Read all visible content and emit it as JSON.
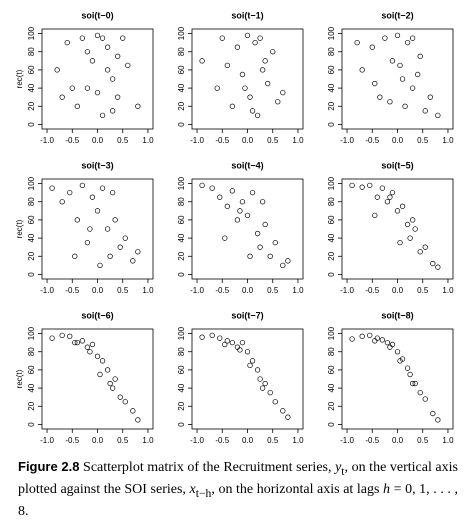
{
  "chart_data": [
    {
      "type": "scatter",
      "title": "soi(t−0)",
      "ylabel": "rec(t)",
      "x": [
        -0.8,
        -0.6,
        -0.4,
        -0.3,
        -0.2,
        -0.1,
        0,
        0.1,
        0.2,
        0.3,
        0.4,
        0.5,
        0.6,
        0.8,
        -0.5,
        0.2,
        0.1,
        -0.2,
        0.3,
        0.0,
        0.4,
        -0.7
      ],
      "y": [
        60,
        90,
        20,
        95,
        40,
        70,
        98,
        10,
        85,
        50,
        30,
        95,
        65,
        20,
        40,
        60,
        95,
        80,
        15,
        35,
        75,
        30
      ],
      "xlim": [
        -1.1,
        1.1
      ],
      "ylim": [
        -5,
        105
      ],
      "xticks": [
        {
          "value": -1,
          "label": "-1.0"
        },
        -0.5,
        {
          "value": 0,
          "label": "0.0"
        },
        0.5,
        {
          "value": 1,
          "label": "1.0"
        }
      ],
      "yticks": [
        0,
        20,
        40,
        60,
        80,
        100
      ]
    },
    {
      "type": "scatter",
      "title": "soi(t−1)",
      "x": [
        -0.9,
        -0.6,
        -0.5,
        -0.3,
        -0.2,
        -0.1,
        0,
        0.05,
        0.15,
        0.2,
        0.3,
        0.4,
        0.5,
        0.6,
        0.7,
        -0.4,
        0.1,
        0.25,
        -0.05,
        0.35
      ],
      "y": [
        70,
        40,
        95,
        20,
        85,
        55,
        98,
        30,
        90,
        10,
        60,
        45,
        80,
        25,
        35,
        65,
        15,
        95,
        40,
        70
      ],
      "xlim": [
        -1.1,
        1.1
      ],
      "ylim": [
        -5,
        105
      ],
      "xticks": [
        {
          "value": -1,
          "label": "-1.0"
        },
        -0.5,
        {
          "value": 0,
          "label": "0.0"
        },
        0.5,
        {
          "value": 1,
          "label": "1.0"
        }
      ],
      "yticks": [
        0,
        20,
        40,
        60,
        80,
        100
      ]
    },
    {
      "type": "scatter",
      "title": "soi(t−2)",
      "x": [
        -0.8,
        -0.7,
        -0.5,
        -0.35,
        -0.25,
        -0.1,
        0,
        0.1,
        0.15,
        0.2,
        0.3,
        0.45,
        0.55,
        0.65,
        0.8,
        -0.45,
        0.05,
        0.3,
        -0.15,
        0.4
      ],
      "y": [
        90,
        60,
        85,
        30,
        95,
        70,
        98,
        50,
        20,
        90,
        40,
        75,
        15,
        30,
        10,
        45,
        65,
        95,
        25,
        55
      ],
      "xlim": [
        -1.1,
        1.1
      ],
      "ylim": [
        -5,
        105
      ],
      "xticks": [
        {
          "value": -1,
          "label": "-1.0"
        },
        -0.5,
        {
          "value": 0,
          "label": "0.0"
        },
        0.5,
        {
          "value": 1,
          "label": "1.0"
        }
      ],
      "yticks": [
        0,
        20,
        40,
        60,
        80,
        100
      ]
    },
    {
      "type": "scatter",
      "title": "soi(t−3)",
      "ylabel": "rec(t)",
      "x": [
        -0.9,
        -0.7,
        -0.55,
        -0.4,
        -0.3,
        -0.2,
        -0.1,
        0,
        0.1,
        0.2,
        0.25,
        0.35,
        0.45,
        0.55,
        0.7,
        0.8,
        -0.45,
        0.05,
        0.3,
        -0.15
      ],
      "y": [
        95,
        80,
        90,
        60,
        98,
        35,
        85,
        70,
        95,
        50,
        20,
        60,
        30,
        40,
        15,
        25,
        20,
        10,
        90,
        50
      ],
      "xlim": [
        -1.1,
        1.1
      ],
      "ylim": [
        -5,
        105
      ],
      "xticks": [
        {
          "value": -1,
          "label": "-1.0"
        },
        -0.5,
        {
          "value": 0,
          "label": "0.0"
        },
        0.5,
        {
          "value": 1,
          "label": "1.0"
        }
      ],
      "yticks": [
        0,
        20,
        40,
        60,
        80,
        100
      ]
    },
    {
      "type": "scatter",
      "title": "soi(t−4)",
      "x": [
        -0.9,
        -0.7,
        -0.55,
        -0.4,
        -0.3,
        -0.2,
        -0.1,
        0,
        0.1,
        0.2,
        0.25,
        0.35,
        0.45,
        0.55,
        0.7,
        0.8,
        -0.45,
        0.05,
        0.3,
        -0.15
      ],
      "y": [
        98,
        95,
        85,
        75,
        92,
        60,
        80,
        65,
        90,
        45,
        30,
        55,
        20,
        35,
        10,
        15,
        40,
        20,
        80,
        70
      ],
      "xlim": [
        -1.1,
        1.1
      ],
      "ylim": [
        -5,
        105
      ],
      "xticks": [
        {
          "value": -1,
          "label": "-1.0"
        },
        -0.5,
        {
          "value": 0,
          "label": "0.0"
        },
        0.5,
        {
          "value": 1,
          "label": "1.0"
        }
      ],
      "yticks": [
        0,
        20,
        40,
        60,
        80,
        100
      ]
    },
    {
      "type": "scatter",
      "title": "soi(t−5)",
      "x": [
        -0.9,
        -0.7,
        -0.55,
        -0.4,
        -0.3,
        -0.2,
        -0.1,
        0,
        0.1,
        0.2,
        0.25,
        0.35,
        0.45,
        0.55,
        0.7,
        0.8,
        -0.45,
        0.05,
        0.3,
        -0.15
      ],
      "y": [
        98,
        96,
        98,
        85,
        95,
        80,
        90,
        70,
        75,
        55,
        40,
        50,
        25,
        30,
        12,
        8,
        65,
        35,
        60,
        85
      ],
      "xlim": [
        -1.1,
        1.1
      ],
      "ylim": [
        -5,
        105
      ],
      "xticks": [
        {
          "value": -1,
          "label": "-1.0"
        },
        -0.5,
        {
          "value": 0,
          "label": "0.0"
        },
        0.5,
        {
          "value": 1,
          "label": "1.0"
        }
      ],
      "yticks": [
        0,
        20,
        40,
        60,
        80,
        100
      ]
    },
    {
      "type": "scatter",
      "title": "soi(t−6)",
      "ylabel": "rec(t)",
      "x": [
        -0.9,
        -0.7,
        -0.55,
        -0.4,
        -0.3,
        -0.2,
        -0.1,
        0,
        0.1,
        0.2,
        0.25,
        0.35,
        0.45,
        0.55,
        0.7,
        0.8,
        -0.45,
        0.05,
        0.3,
        -0.15
      ],
      "y": [
        95,
        98,
        97,
        90,
        92,
        85,
        88,
        75,
        70,
        60,
        45,
        50,
        30,
        25,
        15,
        5,
        90,
        55,
        40,
        80
      ],
      "xlim": [
        -1.1,
        1.1
      ],
      "ylim": [
        -5,
        105
      ],
      "xticks": [
        {
          "value": -1,
          "label": "-1.0"
        },
        -0.5,
        {
          "value": 0,
          "label": "0.0"
        },
        0.5,
        {
          "value": 1,
          "label": "1.0"
        }
      ],
      "yticks": [
        0,
        20,
        40,
        60,
        80,
        100
      ]
    },
    {
      "type": "scatter",
      "title": "soi(t−7)",
      "x": [
        -0.9,
        -0.7,
        -0.55,
        -0.4,
        -0.3,
        -0.2,
        -0.1,
        0,
        0.1,
        0.2,
        0.25,
        0.35,
        0.45,
        0.55,
        0.7,
        0.8,
        -0.45,
        0.05,
        0.3,
        -0.15
      ],
      "y": [
        96,
        98,
        95,
        92,
        90,
        85,
        90,
        80,
        70,
        60,
        50,
        45,
        35,
        25,
        15,
        8,
        88,
        65,
        40,
        82
      ],
      "xlim": [
        -1.1,
        1.1
      ],
      "ylim": [
        -5,
        105
      ],
      "xticks": [
        {
          "value": -1,
          "label": "-1.0"
        },
        -0.5,
        {
          "value": 0,
          "label": "0.0"
        },
        0.5,
        {
          "value": 1,
          "label": "1.0"
        }
      ],
      "yticks": [
        0,
        20,
        40,
        60,
        80,
        100
      ]
    },
    {
      "type": "scatter",
      "title": "soi(t−8)",
      "x": [
        -0.9,
        -0.7,
        -0.55,
        -0.4,
        -0.3,
        -0.2,
        -0.1,
        0,
        0.1,
        0.2,
        0.25,
        0.35,
        0.45,
        0.55,
        0.7,
        0.8,
        -0.45,
        0.05,
        0.3,
        -0.15
      ],
      "y": [
        94,
        97,
        98,
        95,
        93,
        90,
        88,
        80,
        72,
        62,
        55,
        45,
        35,
        28,
        12,
        5,
        92,
        70,
        45,
        85
      ],
      "xlim": [
        -1.1,
        1.1
      ],
      "ylim": [
        -5,
        105
      ],
      "xticks": [
        {
          "value": -1,
          "label": "-1.0"
        },
        -0.5,
        {
          "value": 0,
          "label": "0.0"
        },
        0.5,
        {
          "value": 1,
          "label": "1.0"
        }
      ],
      "yticks": [
        0,
        20,
        40,
        60,
        80,
        100
      ]
    }
  ],
  "caption": {
    "label": "Figure 2.8",
    "parts": [
      " Scatterplot matrix of the Recruitment series, ",
      "y",
      "t",
      ", on the vertical axis plotted against the SOI series, ",
      "x",
      "t−h",
      ", on the horizontal axis at lags ",
      "h",
      " = 0, 1, . . . , 8."
    ]
  }
}
